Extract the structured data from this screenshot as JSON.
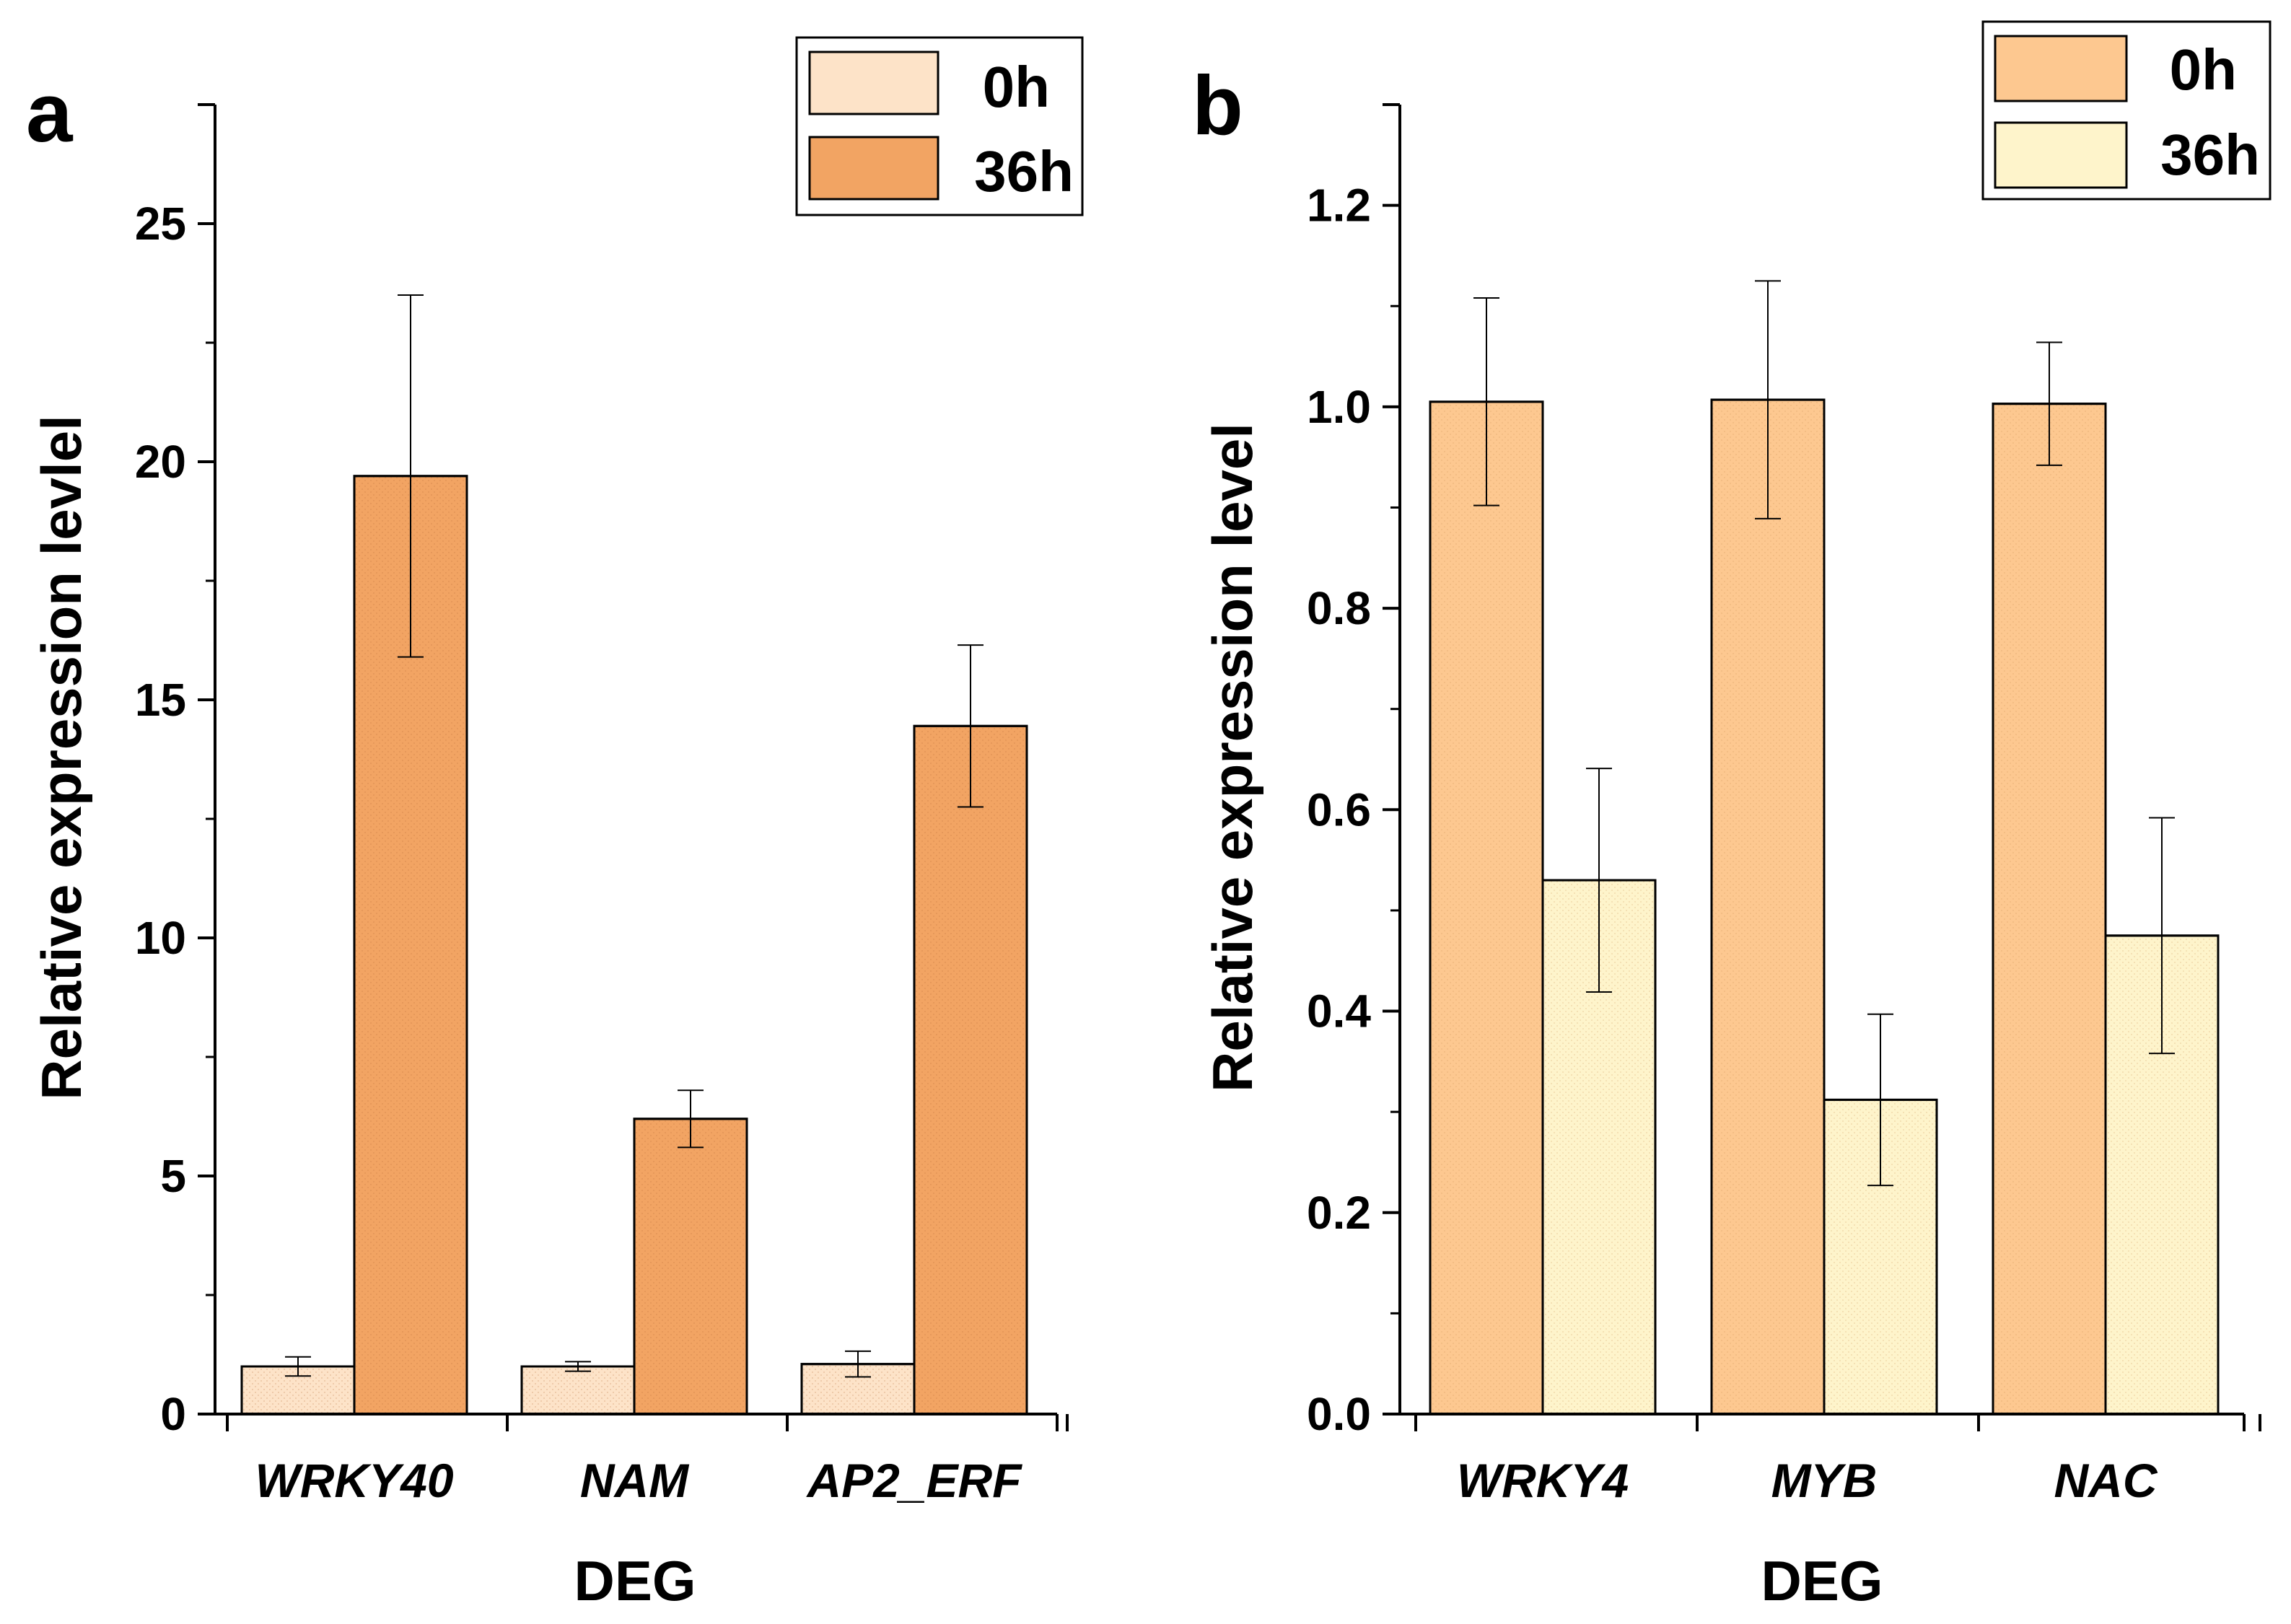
{
  "chart_data": [
    {
      "type": "bar",
      "panel_label": "a",
      "categories": [
        "WRKY40",
        "NAM",
        "AP2_ERF"
      ],
      "series": [
        {
          "name": "0h",
          "color": "#fde3c8",
          "values": [
            1.0,
            1.0,
            1.05
          ],
          "errors": [
            0.2,
            0.1,
            0.27
          ]
        },
        {
          "name": "36h",
          "color": "#f2a463",
          "values": [
            19.7,
            6.2,
            14.45
          ],
          "errors": [
            3.8,
            0.6,
            1.7
          ]
        }
      ],
      "xlabel": "DEG",
      "ylabel": "Relative expression levlel",
      "ylim": [
        0,
        27.5
      ],
      "yticks": [
        0,
        5,
        10,
        15,
        20,
        25
      ],
      "ytick_labels": [
        "0",
        "5",
        "10",
        "15",
        "20",
        "25"
      ],
      "grid": false,
      "legend_position": "top-right"
    },
    {
      "type": "bar",
      "panel_label": "b",
      "categories": [
        "WRKY4",
        "MYB",
        "NAC"
      ],
      "series": [
        {
          "name": "0h",
          "color": "#fdc890",
          "values": [
            1.005,
            1.007,
            1.003
          ],
          "errors": [
            0.103,
            0.118,
            0.061
          ]
        },
        {
          "name": "36h",
          "color": "#fef4cb",
          "values": [
            0.53,
            0.312,
            0.475
          ],
          "errors": [
            0.111,
            0.085,
            0.117
          ]
        }
      ],
      "xlabel": "DEG",
      "ylabel": "Relative expression level",
      "ylim": [
        0,
        1.3
      ],
      "yticks": [
        0,
        0.2,
        0.4,
        0.6,
        0.8,
        1.0,
        1.2
      ],
      "ytick_labels": [
        "0.0",
        "0.2",
        "0.4",
        "0.6",
        "0.8",
        "1.0",
        "1.2"
      ],
      "grid": false,
      "legend_position": "top-right"
    }
  ]
}
